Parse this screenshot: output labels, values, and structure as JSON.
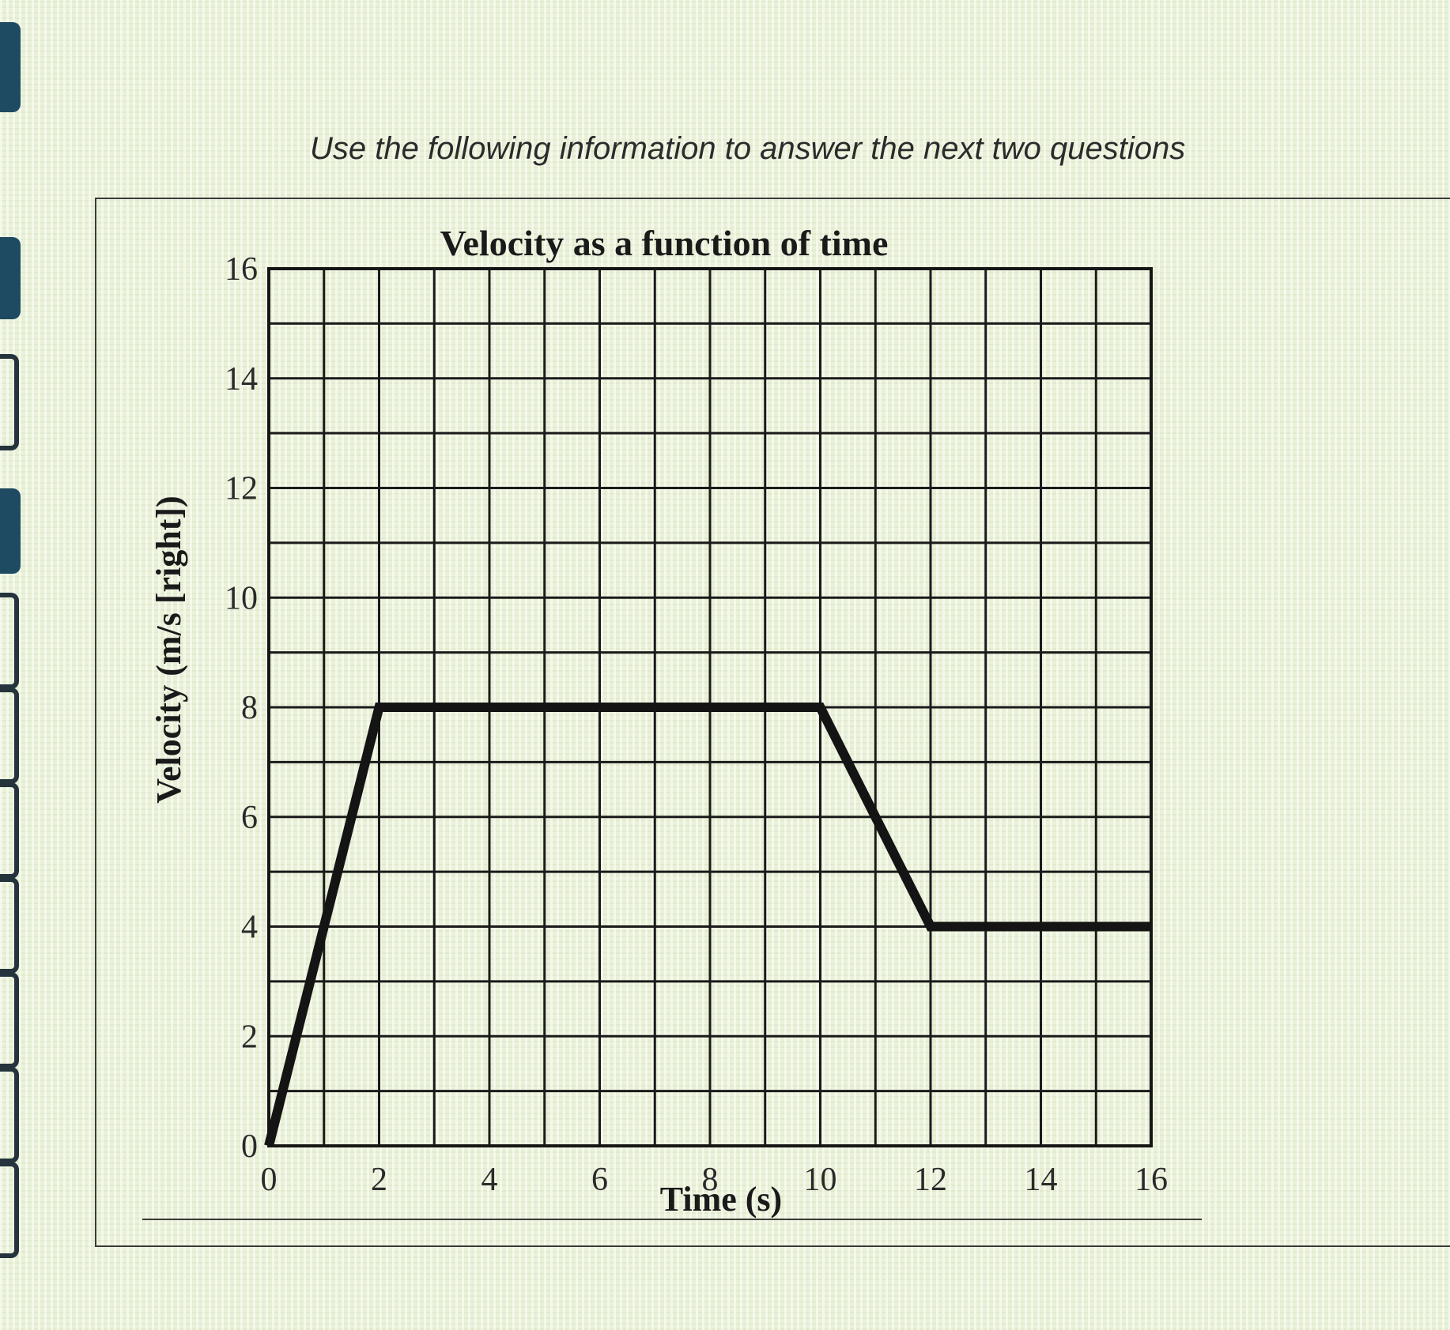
{
  "page": {
    "instruction": "Use the following information to answer the next two questions"
  },
  "chart_data": {
    "type": "line",
    "title": "Velocity as a function of time",
    "xlabel": "Time (s)",
    "ylabel": "Velocity (m/s [right])",
    "xlim": [
      0,
      16
    ],
    "ylim": [
      0,
      16
    ],
    "x_ticks": [
      0,
      2,
      4,
      6,
      8,
      10,
      12,
      14,
      16
    ],
    "y_ticks": [
      0,
      2,
      4,
      6,
      8,
      10,
      12,
      14,
      16
    ],
    "grid": true,
    "grid_minor_step": 1,
    "series": [
      {
        "points": [
          [
            0,
            0
          ],
          [
            2,
            8
          ],
          [
            10,
            8
          ],
          [
            12,
            4
          ],
          [
            16,
            4
          ]
        ]
      }
    ],
    "colors": {
      "line": "#141414",
      "grid": "#1a1a1a"
    }
  }
}
